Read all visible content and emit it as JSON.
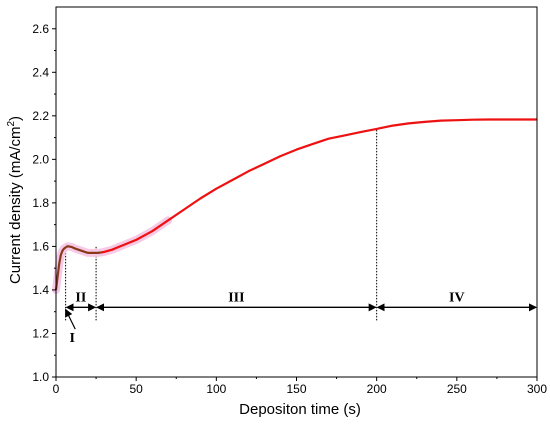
{
  "chart_data": {
    "type": "line",
    "xlabel": "Depositon time (s)",
    "ylabel_main": "Current density (mA/cm",
    "ylabel_sup": "2",
    "ylabel_tail": ")",
    "xlim": [
      0,
      300
    ],
    "ylim": [
      1.0,
      2.7
    ],
    "xticks": [
      0,
      50,
      100,
      150,
      200,
      250,
      300
    ],
    "yticks": [
      1.0,
      1.2,
      1.4,
      1.6,
      1.8,
      2.0,
      2.2,
      2.4,
      2.6
    ],
    "x_tick_labels": [
      "0",
      "50",
      "100",
      "150",
      "200",
      "250",
      "300"
    ],
    "y_tick_labels": [
      "1.0",
      "1.2",
      "1.4",
      "1.6",
      "1.8",
      "2.0",
      "2.2",
      "2.4",
      "2.6"
    ],
    "grid": false,
    "colors": {
      "early": "#8a3a1a",
      "main": "#ee1111",
      "highlight": "#f6c9e6"
    },
    "series": [
      {
        "x": [
          0,
          1,
          2,
          3,
          4,
          5,
          6,
          7,
          8,
          10,
          12,
          14,
          16,
          18,
          20,
          22,
          24,
          26,
          28,
          30,
          35,
          40,
          50,
          60,
          70,
          80,
          90,
          100,
          110,
          120,
          130,
          140,
          150,
          160,
          170,
          180,
          190,
          200,
          210,
          220,
          230,
          240,
          250,
          260,
          270,
          280,
          290,
          300
        ],
        "y": [
          1.4,
          1.46,
          1.52,
          1.56,
          1.58,
          1.59,
          1.595,
          1.6,
          1.6,
          1.597,
          1.59,
          1.585,
          1.58,
          1.575,
          1.57,
          1.57,
          1.57,
          1.57,
          1.572,
          1.575,
          1.585,
          1.6,
          1.63,
          1.67,
          1.72,
          1.77,
          1.82,
          1.865,
          1.905,
          1.945,
          1.98,
          2.015,
          2.045,
          2.07,
          2.095,
          2.11,
          2.125,
          2.14,
          2.155,
          2.165,
          2.172,
          2.178,
          2.18,
          2.182,
          2.183,
          2.183,
          2.183,
          2.183
        ]
      }
    ],
    "region_boundaries": [
      6,
      25,
      200
    ],
    "regions": [
      {
        "label": "II",
        "from": 6,
        "to": 25,
        "y": 1.32
      },
      {
        "label": "III",
        "from": 25,
        "to": 200,
        "y": 1.32
      },
      {
        "label": "IV",
        "from": 200,
        "to": 300,
        "y": 1.32
      }
    ],
    "annotation": {
      "label": "I",
      "arrow_from": [
        12,
        1.22
      ],
      "arrow_to": [
        6,
        1.31
      ]
    }
  }
}
